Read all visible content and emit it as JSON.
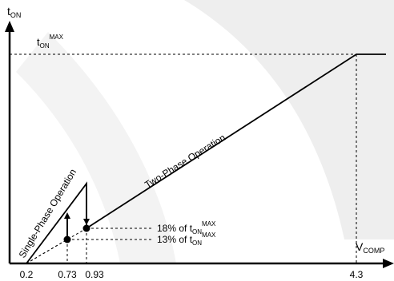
{
  "axes": {
    "y_label": {
      "base": "t",
      "sub": "ON"
    },
    "x_label": {
      "base": "V",
      "sub": "COMP"
    }
  },
  "max_label": {
    "base": "t",
    "sub": "ON",
    "sup": "MAX"
  },
  "x_ticks": [
    "0.2",
    "0.73",
    "0.93",
    "4.3"
  ],
  "regions": {
    "single_phase": "Single-Phase Operation",
    "two_phase": "Two-Phase Operation"
  },
  "annotations": {
    "upper": {
      "prefix": "18% of t",
      "sub": "ON",
      "sup": "MAX"
    },
    "lower": {
      "prefix": "13% of t",
      "sub": "ON",
      "sup": "MAX"
    }
  },
  "colors": {
    "line": "#000000",
    "background": "#ffffff",
    "watermark": "#eeeeee"
  }
}
